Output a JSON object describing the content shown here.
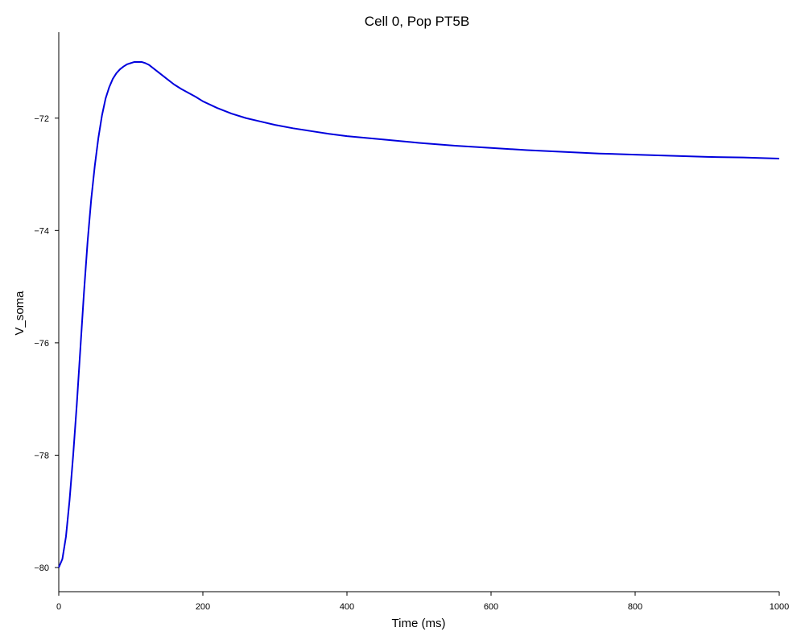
{
  "chart_data": {
    "type": "line",
    "title": "Cell 0, Pop PT5B",
    "xlabel": "Time (ms)",
    "ylabel": "V_soma",
    "xlim": [
      0,
      1000
    ],
    "ylim": [
      -80.43,
      -70.47
    ],
    "xticks": [
      0,
      200,
      400,
      600,
      800,
      1000
    ],
    "yticks": [
      -80,
      -78,
      -76,
      -74,
      -72
    ],
    "grid": false,
    "series": [
      {
        "color": "#0000dd",
        "x": [
          0,
          5,
          10,
          15,
          20,
          25,
          30,
          35,
          40,
          45,
          50,
          55,
          60,
          65,
          70,
          75,
          80,
          85,
          90,
          95,
          100,
          105,
          110,
          115,
          120,
          125,
          130,
          140,
          150,
          160,
          170,
          180,
          190,
          200,
          220,
          240,
          260,
          280,
          300,
          325,
          350,
          375,
          400,
          450,
          500,
          550,
          600,
          650,
          700,
          750,
          800,
          850,
          900,
          950,
          1000
        ],
        "y": [
          -80.0,
          -79.85,
          -79.45,
          -78.8,
          -78.0,
          -77.1,
          -76.1,
          -75.1,
          -74.2,
          -73.45,
          -72.85,
          -72.35,
          -71.95,
          -71.65,
          -71.45,
          -71.3,
          -71.2,
          -71.13,
          -71.08,
          -71.04,
          -71.02,
          -71.0,
          -71.0,
          -71.0,
          -71.02,
          -71.05,
          -71.1,
          -71.2,
          -71.3,
          -71.4,
          -71.48,
          -71.55,
          -71.62,
          -71.7,
          -71.82,
          -71.92,
          -72.0,
          -72.06,
          -72.12,
          -72.18,
          -72.23,
          -72.28,
          -72.32,
          -72.38,
          -72.44,
          -72.49,
          -72.53,
          -72.57,
          -72.6,
          -72.63,
          -72.65,
          -72.67,
          -72.69,
          -72.7,
          -72.72
        ]
      }
    ]
  }
}
